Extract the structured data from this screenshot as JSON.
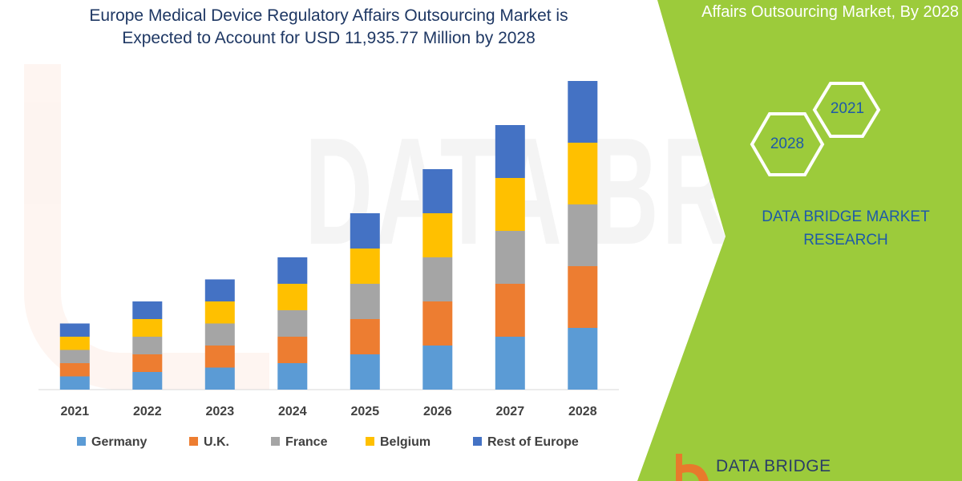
{
  "title_line1": "Europe Medical Device Regulatory Affairs Outsourcing Market is",
  "title_line2": "Expected to Account for USD 11,935.77 Million by 2028",
  "panel": {
    "title": "Affairs Outsourcing Market, By 2028",
    "hex_2021": "2021",
    "hex_2028": "2028",
    "brand_line1": "DATA BRIDGE MARKET",
    "brand_line2": "RESEARCH",
    "logo_text": "DATA BRIDGE",
    "green": "#9ccb3b"
  },
  "chart_data": {
    "type": "bar",
    "stacked": true,
    "categories": [
      "2021",
      "2022",
      "2023",
      "2024",
      "2025",
      "2026",
      "2027",
      "2028"
    ],
    "series": [
      {
        "name": "Germany",
        "color": "#5b9bd5",
        "values": [
          15,
          20,
          25,
          30,
          40,
          50,
          60,
          70
        ]
      },
      {
        "name": "U.K.",
        "color": "#ed7d31",
        "values": [
          15,
          20,
          25,
          30,
          40,
          50,
          60,
          70
        ]
      },
      {
        "name": "France",
        "color": "#a5a5a5",
        "values": [
          15,
          20,
          25,
          30,
          40,
          50,
          60,
          70
        ]
      },
      {
        "name": "Belgium",
        "color": "#ffc000",
        "values": [
          15,
          20,
          25,
          30,
          40,
          50,
          60,
          70
        ]
      },
      {
        "name": "Rest of Europe",
        "color": "#4472c4",
        "values": [
          15,
          20,
          25,
          30,
          40,
          50,
          60,
          70
        ]
      }
    ],
    "ylim": [
      0,
      360
    ],
    "y_axis_visible": false,
    "grid": false,
    "legend_position": "bottom"
  }
}
